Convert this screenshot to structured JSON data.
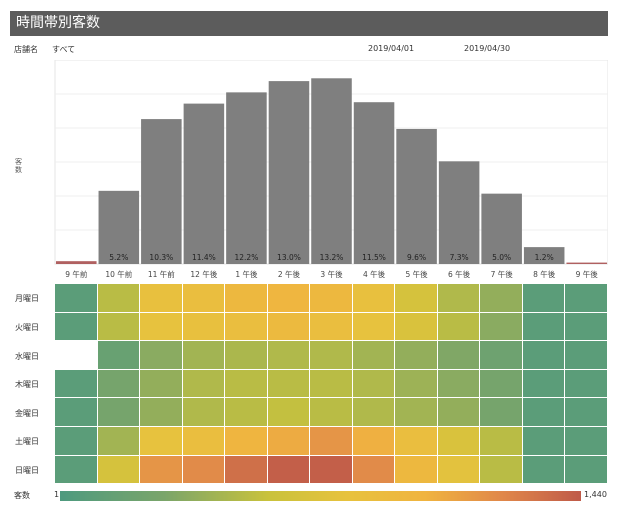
{
  "title": "時間帯別客数",
  "filters": {
    "store_label": "店舗名",
    "store_value": "すべて",
    "date_from": "2019/04/01",
    "date_to": "2019/04/30"
  },
  "chart_data": {
    "type": "bar",
    "ylabel": "客数",
    "categories": [
      "9 午前",
      "10 午前",
      "11 午前",
      "12 午後",
      "1 午後",
      "2 午後",
      "3 午後",
      "4 午後",
      "5 午後",
      "6 午後",
      "7 午後",
      "8 午後",
      "9 午後"
    ],
    "values": [
      0.2,
      5.2,
      10.3,
      11.4,
      12.2,
      13.0,
      13.2,
      11.5,
      9.6,
      7.3,
      5.0,
      1.2,
      0.1
    ],
    "data_labels": [
      "",
      "5.2%",
      "10.3%",
      "11.4%",
      "12.2%",
      "13.0%",
      "13.2%",
      "11.5%",
      "9.6%",
      "7.3%",
      "5.0%",
      "1.2%",
      ""
    ],
    "ylim": [
      0,
      14.5
    ],
    "grid": true,
    "bar_color": "#7f7f7f"
  },
  "heatmap": {
    "rows": [
      "月曜日",
      "火曜日",
      "水曜日",
      "木曜日",
      "金曜日",
      "土曜日",
      "日曜日"
    ],
    "levels": [
      [
        0.05,
        0.3,
        0.52,
        0.55,
        0.62,
        0.64,
        0.62,
        0.52,
        0.4,
        0.28,
        0.22,
        0.05,
        0.05
      ],
      [
        0.05,
        0.3,
        0.5,
        0.52,
        0.55,
        0.6,
        0.55,
        0.5,
        0.42,
        0.3,
        0.2,
        0.05,
        0.05
      ],
      [
        null,
        0.1,
        0.2,
        0.25,
        0.27,
        0.28,
        0.28,
        0.25,
        0.22,
        0.18,
        0.12,
        0.05,
        0.05
      ],
      [
        0.05,
        0.15,
        0.22,
        0.28,
        0.3,
        0.3,
        0.3,
        0.28,
        0.24,
        0.2,
        0.15,
        0.05,
        0.05
      ],
      [
        0.05,
        0.15,
        0.22,
        0.28,
        0.3,
        0.32,
        0.3,
        0.28,
        0.25,
        0.22,
        0.15,
        0.05,
        0.05
      ],
      [
        0.05,
        0.25,
        0.5,
        0.55,
        0.65,
        0.7,
        0.78,
        0.68,
        0.55,
        0.42,
        0.3,
        0.05,
        0.05
      ],
      [
        0.05,
        0.4,
        0.78,
        0.82,
        0.92,
        0.98,
        0.98,
        0.82,
        0.62,
        0.48,
        0.3,
        0.05,
        0.05
      ]
    ]
  },
  "legend": {
    "label": "客数",
    "min": "1",
    "max": "1,440",
    "colors": [
      "#4e9a7f",
      "#7aa56a",
      "#c9c23c",
      "#e7c23e",
      "#f0b440",
      "#e0874a",
      "#bf5a49"
    ]
  }
}
